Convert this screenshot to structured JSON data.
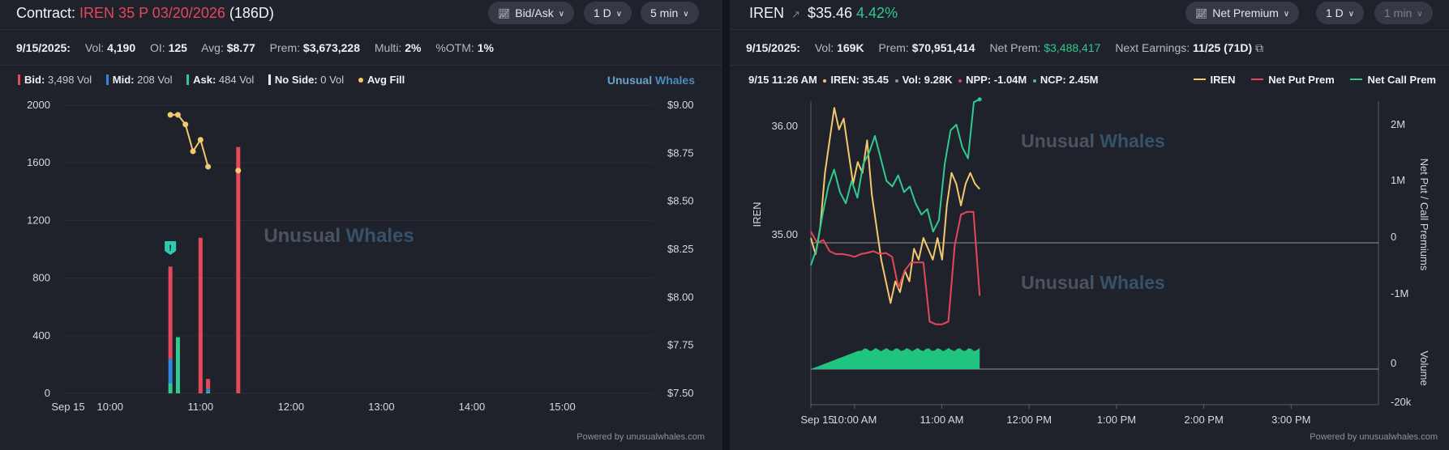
{
  "left": {
    "title": {
      "prefix": "Contract:",
      "symbol": "IREN 35 P 03/20/2026",
      "days": "(186D)"
    },
    "controls": [
      {
        "label": "Bid/Ask",
        "icon": "chart-line-icon"
      },
      {
        "label": "1 D"
      },
      {
        "label": "5 min"
      }
    ],
    "stats": {
      "date": "9/15/2025:",
      "vol_label": "Vol:",
      "vol": "4,190",
      "oi_label": "OI:",
      "oi": "125",
      "avg_label": "Avg:",
      "avg": "$8.77",
      "prem_label": "Prem:",
      "prem": "$3,673,228",
      "multi_label": "Multi:",
      "multi": "2%",
      "otm_label": "%OTM:",
      "otm": "1%"
    },
    "legend": [
      {
        "name": "Bid:",
        "value": "3,498 Vol",
        "color": "#e5475b"
      },
      {
        "name": "Mid:",
        "value": "208 Vol",
        "color": "#2f86e0"
      },
      {
        "name": "Ask:",
        "value": "484 Vol",
        "color": "#2fca8d"
      },
      {
        "name": "No Side:",
        "value": "0 Vol",
        "color": "#e8eaee"
      },
      {
        "name": "Avg Fill",
        "value": "",
        "color": "#f2c96d"
      }
    ],
    "brand_small": {
      "part1": "Unusual",
      "part2": "Whales"
    },
    "watermark": {
      "part1": "Unusual",
      "part2": "Whales"
    },
    "powered": "Powered by unusualwhales.com",
    "chart_data": {
      "type": "bar",
      "x_ticks": [
        "Sep 15",
        "10:00",
        "11:00",
        "12:00",
        "13:00",
        "14:00",
        "15:00"
      ],
      "left_axis": {
        "label": "Volume",
        "ticks": [
          "2000",
          "1600",
          "1200",
          "800",
          "400",
          "0"
        ],
        "ylim": [
          0,
          2000
        ]
      },
      "right_axis": {
        "label": "Avg Fill",
        "ticks": [
          "$9.00",
          "$8.75",
          "$8.50",
          "$8.25",
          "$8.00",
          "$7.75",
          "$7.50"
        ],
        "ylim": [
          7.5,
          9.0
        ]
      },
      "bars": [
        {
          "time": "10:40",
          "bid": 640,
          "mid": 170,
          "ask": 70
        },
        {
          "time": "10:45",
          "bid": 0,
          "mid": 0,
          "ask": 390
        },
        {
          "time": "11:00",
          "bid": 1080,
          "mid": 0,
          "ask": 0
        },
        {
          "time": "11:05",
          "bid": 70,
          "mid": 20,
          "ask": 10
        },
        {
          "time": "11:25",
          "bid": 1710,
          "mid": 0,
          "ask": 0
        }
      ],
      "avg_fill": [
        {
          "time": "10:40",
          "value": 8.95
        },
        {
          "time": "10:45",
          "value": 8.95
        },
        {
          "time": "10:50",
          "value": 8.9
        },
        {
          "time": "10:55",
          "value": 8.76
        },
        {
          "time": "11:00",
          "value": 8.82
        },
        {
          "time": "11:05",
          "value": 8.68
        },
        {
          "time": "11:25",
          "value": 8.66
        }
      ],
      "alert_marker": {
        "time": "10:40",
        "icon": "alert-icon"
      }
    }
  },
  "right": {
    "title": {
      "symbol": "IREN",
      "price": "$35.46",
      "change": "4.42%"
    },
    "controls": [
      {
        "label": "Net Premium",
        "icon": "chart-line-icon"
      },
      {
        "label": "1 D"
      },
      {
        "label": "1 min",
        "disabled": true
      }
    ],
    "stats": {
      "date": "9/15/2025:",
      "vol_label": "Vol:",
      "vol": "169K",
      "prem_label": "Prem:",
      "prem": "$70,951,414",
      "netprem_label": "Net Prem:",
      "netprem": "$3,488,417",
      "earn_label": "Next Earnings:",
      "earn": "11/25 (71D)"
    },
    "hover": {
      "datetime": "9/15 11:26 AM",
      "iren": "IREN: 35.45",
      "vol": "Vol: 9.28K",
      "npp": "NPP: -1.04M",
      "ncp": "NCP: 2.45M"
    },
    "legend": [
      {
        "name": "IREN",
        "color": "#f2c96d"
      },
      {
        "name": "Net Put Prem",
        "color": "#e5475b"
      },
      {
        "name": "Net Call Prem",
        "color": "#2fca8d"
      }
    ],
    "watermark": {
      "part1": "Unusual",
      "part2": "Whales"
    },
    "powered": "Powered by unusualwhales.com",
    "chart_data": {
      "type": "line",
      "x_ticks": [
        "Sep 15",
        "10:00 AM",
        "11:00 AM",
        "12:00 PM",
        "1:00 PM",
        "2:00 PM",
        "3:00 PM"
      ],
      "left_axis": {
        "label": "IREN",
        "ticks": [
          "36.00",
          "35.00"
        ]
      },
      "right_axis": {
        "label": "Net Put / Call Premiums",
        "ticks": [
          "2M",
          "1M",
          "0",
          "-1M"
        ]
      },
      "volume_axis": {
        "label": "Volume",
        "ticks": [
          "0",
          "-20k"
        ]
      },
      "series": [
        {
          "name": "IREN",
          "values": [
            35.0,
            34.85,
            35.1,
            35.6,
            35.9,
            36.2,
            36.0,
            36.1,
            35.8,
            35.5,
            35.7,
            35.6,
            35.9,
            35.4,
            35.1,
            34.8,
            34.6,
            34.4,
            34.6,
            34.5,
            34.7,
            34.6,
            34.9,
            34.8,
            35.0,
            34.9,
            34.8,
            35.0,
            34.8,
            35.3,
            35.6,
            35.5,
            35.3,
            35.5,
            35.6,
            35.5,
            35.45
          ]
        },
        {
          "name": "Net Put Prem",
          "values": [
            0.1,
            -0.1,
            -0.05,
            -0.25,
            -0.3,
            -0.3,
            -0.32,
            -0.35,
            -0.3,
            -0.28,
            -0.25,
            -0.3,
            -0.28,
            -0.35,
            -0.9,
            -0.6,
            -0.45,
            -0.45,
            -0.45,
            -1.5,
            -1.55,
            -1.55,
            -1.5,
            -0.15,
            0.4,
            0.45,
            0.45,
            -1.04
          ]
        },
        {
          "name": "Net Call Prem",
          "values": [
            -0.5,
            -0.2,
            0.4,
            0.9,
            1.2,
            0.8,
            0.6,
            1.0,
            0.7,
            1.3,
            1.5,
            1.8,
            1.4,
            1.0,
            0.9,
            1.1,
            0.8,
            0.9,
            0.6,
            0.4,
            0.5,
            0.1,
            0.3,
            1.3,
            1.9,
            2.0,
            1.6,
            1.4,
            2.4,
            2.45
          ]
        }
      ]
    }
  }
}
